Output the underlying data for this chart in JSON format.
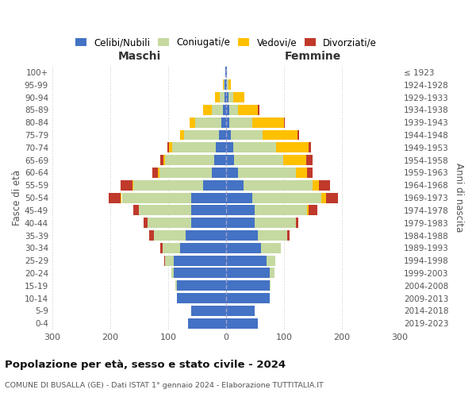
{
  "age_groups": [
    "0-4",
    "5-9",
    "10-14",
    "15-19",
    "20-24",
    "25-29",
    "30-34",
    "35-39",
    "40-44",
    "45-49",
    "50-54",
    "55-59",
    "60-64",
    "65-69",
    "70-74",
    "75-79",
    "80-84",
    "85-89",
    "90-94",
    "95-99",
    "100+"
  ],
  "birth_years": [
    "2019-2023",
    "2014-2018",
    "2009-2013",
    "2004-2008",
    "1999-2003",
    "1994-1998",
    "1989-1993",
    "1984-1988",
    "1979-1983",
    "1974-1978",
    "1969-1973",
    "1964-1968",
    "1959-1963",
    "1954-1958",
    "1949-1953",
    "1944-1948",
    "1939-1943",
    "1934-1938",
    "1929-1933",
    "1924-1928",
    "≤ 1923"
  ],
  "male_celibi": [
    65,
    60,
    85,
    85,
    90,
    90,
    80,
    70,
    60,
    60,
    60,
    40,
    25,
    20,
    18,
    12,
    8,
    5,
    3,
    2,
    1
  ],
  "male_coniugati": [
    0,
    0,
    0,
    2,
    5,
    15,
    30,
    55,
    75,
    90,
    120,
    120,
    90,
    85,
    75,
    60,
    45,
    20,
    8,
    2,
    0
  ],
  "male_vedovi": [
    0,
    0,
    0,
    0,
    0,
    0,
    0,
    0,
    0,
    0,
    2,
    2,
    2,
    3,
    5,
    8,
    10,
    15,
    8,
    2,
    0
  ],
  "male_divorziati": [
    0,
    0,
    0,
    0,
    0,
    2,
    3,
    8,
    8,
    10,
    20,
    20,
    10,
    5,
    3,
    0,
    0,
    0,
    0,
    0,
    0
  ],
  "female_celibi": [
    55,
    50,
    75,
    75,
    75,
    70,
    60,
    55,
    50,
    50,
    45,
    30,
    20,
    14,
    12,
    8,
    5,
    5,
    4,
    2,
    1
  ],
  "female_coniugati": [
    0,
    0,
    0,
    2,
    8,
    15,
    35,
    50,
    70,
    90,
    120,
    120,
    100,
    85,
    75,
    55,
    40,
    15,
    8,
    2,
    0
  ],
  "female_vedovi": [
    0,
    0,
    0,
    0,
    0,
    0,
    0,
    0,
    0,
    2,
    8,
    10,
    20,
    40,
    55,
    60,
    55,
    35,
    20,
    5,
    1
  ],
  "female_divorziati": [
    0,
    0,
    0,
    0,
    0,
    0,
    0,
    5,
    5,
    15,
    20,
    20,
    10,
    10,
    5,
    3,
    2,
    2,
    0,
    0,
    0
  ],
  "colors": {
    "celibi": "#4472c4",
    "coniugati": "#c5d9a0",
    "vedovi": "#ffc000",
    "divorziati": "#c0392b"
  },
  "title_main": "Popolazione per età, sesso e stato civile - 2024",
  "title_sub": "COMUNE DI BUSALLA (GE) - Dati ISTAT 1° gennaio 2024 - Elaborazione TUTTITALIA.IT",
  "xlabel_left": "Maschi",
  "xlabel_right": "Femmine",
  "ylabel_left": "Fasce di età",
  "ylabel_right": "Anni di nascita",
  "xlim": 300,
  "legend_labels": [
    "Celibi/Nubili",
    "Coniugati/e",
    "Vedovi/e",
    "Divorziati/e"
  ],
  "grid_color": "#cccccc",
  "background_color": "#ffffff"
}
